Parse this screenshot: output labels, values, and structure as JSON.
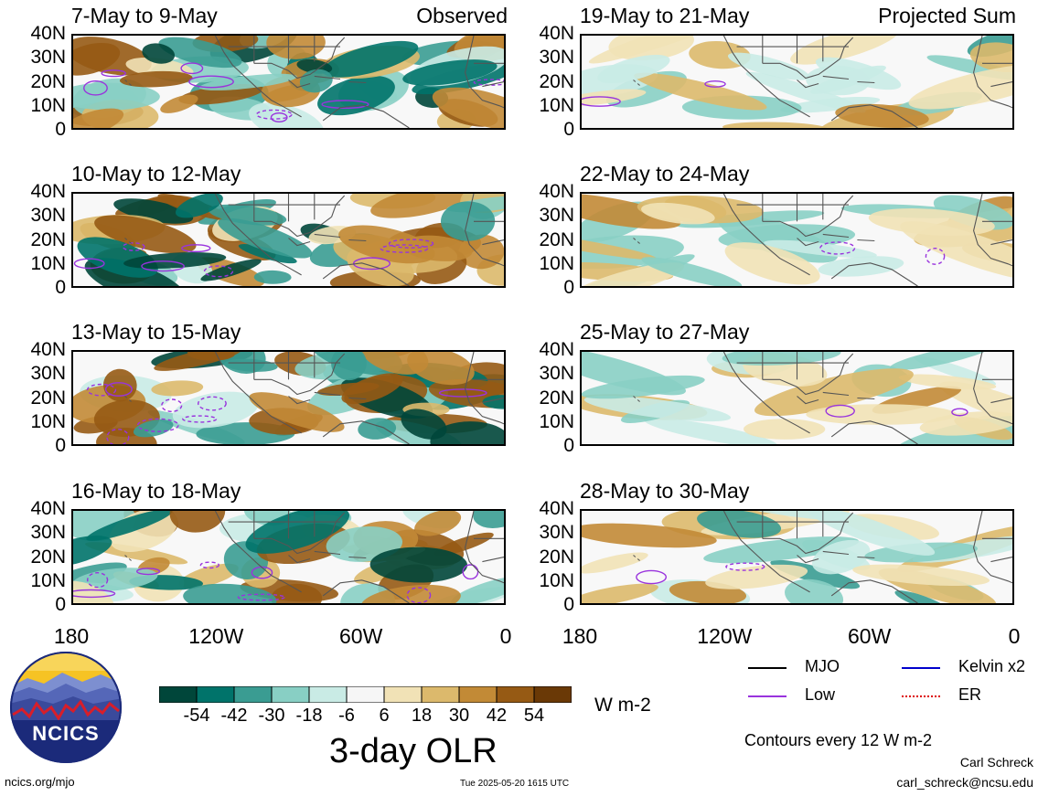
{
  "left_panels": [
    {
      "title": "7-May to 9-May",
      "tag": "Observed"
    },
    {
      "title": "10-May to 12-May",
      "tag": ""
    },
    {
      "title": "13-May to 15-May",
      "tag": ""
    },
    {
      "title": "16-May to 18-May",
      "tag": ""
    }
  ],
  "right_panels": [
    {
      "title": "19-May to 21-May",
      "tag": "Projected Sum"
    },
    {
      "title": "22-May to 24-May",
      "tag": ""
    },
    {
      "title": "25-May to 27-May",
      "tag": ""
    },
    {
      "title": "28-May to 30-May",
      "tag": ""
    }
  ],
  "lat_labels": [
    "40N",
    "30N",
    "20N",
    "10N",
    "0"
  ],
  "lon_labels": [
    "180",
    "120W",
    "60W",
    "0"
  ],
  "colorbar": {
    "tick_labels": [
      "-54",
      "-42",
      "-30",
      "-18",
      "-6",
      "6",
      "18",
      "30",
      "42",
      "54"
    ],
    "colors": [
      "#00463a",
      "#00736a",
      "#3a9c92",
      "#88cfc4",
      "#c9ebe5",
      "#f6f6f6",
      "#f1e2b6",
      "#dcb96c",
      "#c28a36",
      "#965a14",
      "#6a3906"
    ],
    "units": "W m-2",
    "title": "3-day OLR"
  },
  "legend": {
    "items": [
      {
        "label": "MJO",
        "color": "#000000",
        "style": "solid"
      },
      {
        "label": "Kelvin x2",
        "color": "#0000cc",
        "style": "solid"
      },
      {
        "label": "Low",
        "color": "#9933dd",
        "style": "solid"
      },
      {
        "label": "ER",
        "color": "#dd0000",
        "style": "dotted"
      }
    ],
    "contour_note": "Contours every 12 W m-2"
  },
  "logo": {
    "text": "NCICS"
  },
  "footer": {
    "url": "ncics.org/mjo",
    "timestamp": "Tue 2025-05-20 1615 UTC",
    "author": "Carl Schreck",
    "email": "carl_schreck@ncsu.edu"
  }
}
